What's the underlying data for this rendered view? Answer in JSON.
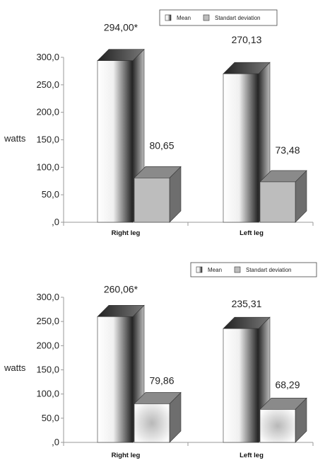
{
  "chart_data": [
    {
      "type": "bar",
      "ylabel": "watts",
      "ylim": [
        0,
        300
      ],
      "yticks": [
        ",0",
        "50,0",
        "100,0",
        "150,0",
        "200,0",
        "250,0",
        "300,0"
      ],
      "categories": [
        "Right leg",
        "Left leg"
      ],
      "legend": {
        "placement": "top-right",
        "entries": [
          "Mean",
          "Standart  deviation"
        ]
      },
      "series": [
        {
          "name": "Mean",
          "values": [
            294.0,
            270.13
          ],
          "labels": [
            "294,00*",
            "270,13"
          ]
        },
        {
          "name": "Standart  deviation",
          "values": [
            80.65,
            73.48
          ],
          "labels": [
            "80,65",
            "73,48"
          ]
        }
      ],
      "grid": false
    },
    {
      "type": "bar",
      "ylabel": "watts",
      "ylim": [
        0,
        300
      ],
      "yticks": [
        ",0",
        "50,0",
        "100,0",
        "150,0",
        "200,0",
        "250,0",
        "300,0"
      ],
      "categories": [
        "Right leg",
        "Left leg"
      ],
      "legend": {
        "placement": "top-right",
        "entries": [
          "Mean",
          "Standart  deviation"
        ]
      },
      "series": [
        {
          "name": "Mean",
          "values": [
            260.06,
            235.31
          ],
          "labels": [
            "260,06*",
            "235,31"
          ]
        },
        {
          "name": "Standart  deviation",
          "values": [
            79.86,
            68.29
          ],
          "labels": [
            "79,86",
            "68,29"
          ]
        }
      ],
      "grid": false
    }
  ]
}
